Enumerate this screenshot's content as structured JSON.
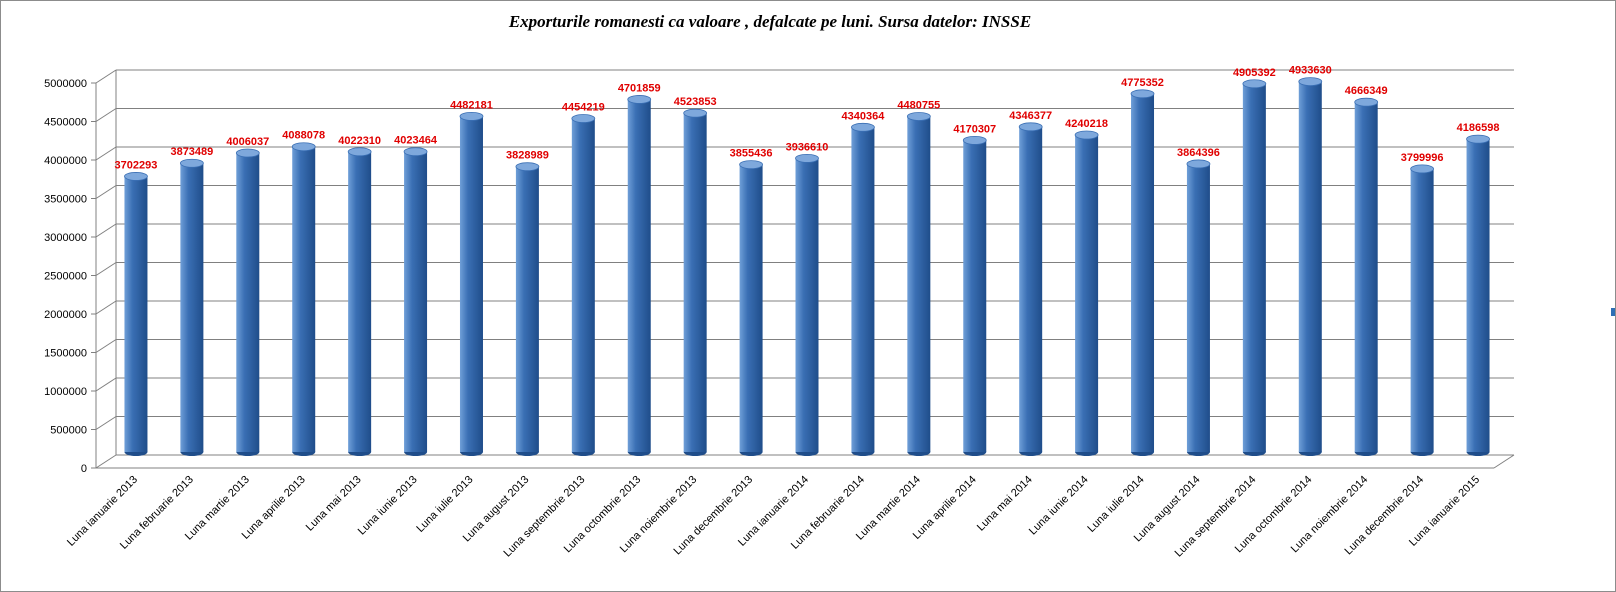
{
  "chart_data": {
    "type": "bar",
    "title": "Exporturile romanesti ca valoare , defalcate pe luni. Sursa datelor: INSSE",
    "categories": [
      "Luna ianuarie 2013",
      "Luna februarie 2013",
      "Luna martie 2013",
      "Luna aprilie 2013",
      "Luna mai 2013",
      "Luna iunie 2013",
      "Luna iulie 2013",
      "Luna august 2013",
      "Luna septembrie 2013",
      "Luna octombrie 2013",
      "Luna noiembrie 2013",
      "Luna decembrie 2013",
      "Luna ianuarie 2014",
      "Luna februarie 2014",
      "Luna martie 2014",
      "Luna aprilie 2014",
      "Luna mai 2014",
      "Luna iunie 2014",
      "Luna iulie 2014",
      "Luna august 2014",
      "Luna septembrie 2014",
      "Luna octombrie 2014",
      "Luna noiembrie 2014",
      "Luna decembrie 2014",
      "Luna ianuarie 2015"
    ],
    "values": [
      3702293,
      3873489,
      4006037,
      4088078,
      4022310,
      4023464,
      4482181,
      3828989,
      4454219,
      4701859,
      4523853,
      3855436,
      3936610,
      4340364,
      4480755,
      4170307,
      4346377,
      4240218,
      4775352,
      3864396,
      4905392,
      4933630,
      4666349,
      3799996,
      4186598
    ],
    "ylim": [
      0,
      5000000
    ],
    "yticks": [
      "0",
      "500000",
      "1000000",
      "1500000",
      "2000000",
      "2500000",
      "3000000",
      "3500000",
      "4000000",
      "4500000",
      "5000000"
    ],
    "xlabel": "",
    "ylabel": "",
    "grid": true,
    "legend": "none",
    "colors": {
      "bar_light": "#6f9fd8",
      "bar_mid": "#3a6fb4",
      "bar_dark": "#1f4d8a",
      "bar_top": "#7ea8dc",
      "data_label": "#e00000",
      "grid": "#808080"
    }
  }
}
